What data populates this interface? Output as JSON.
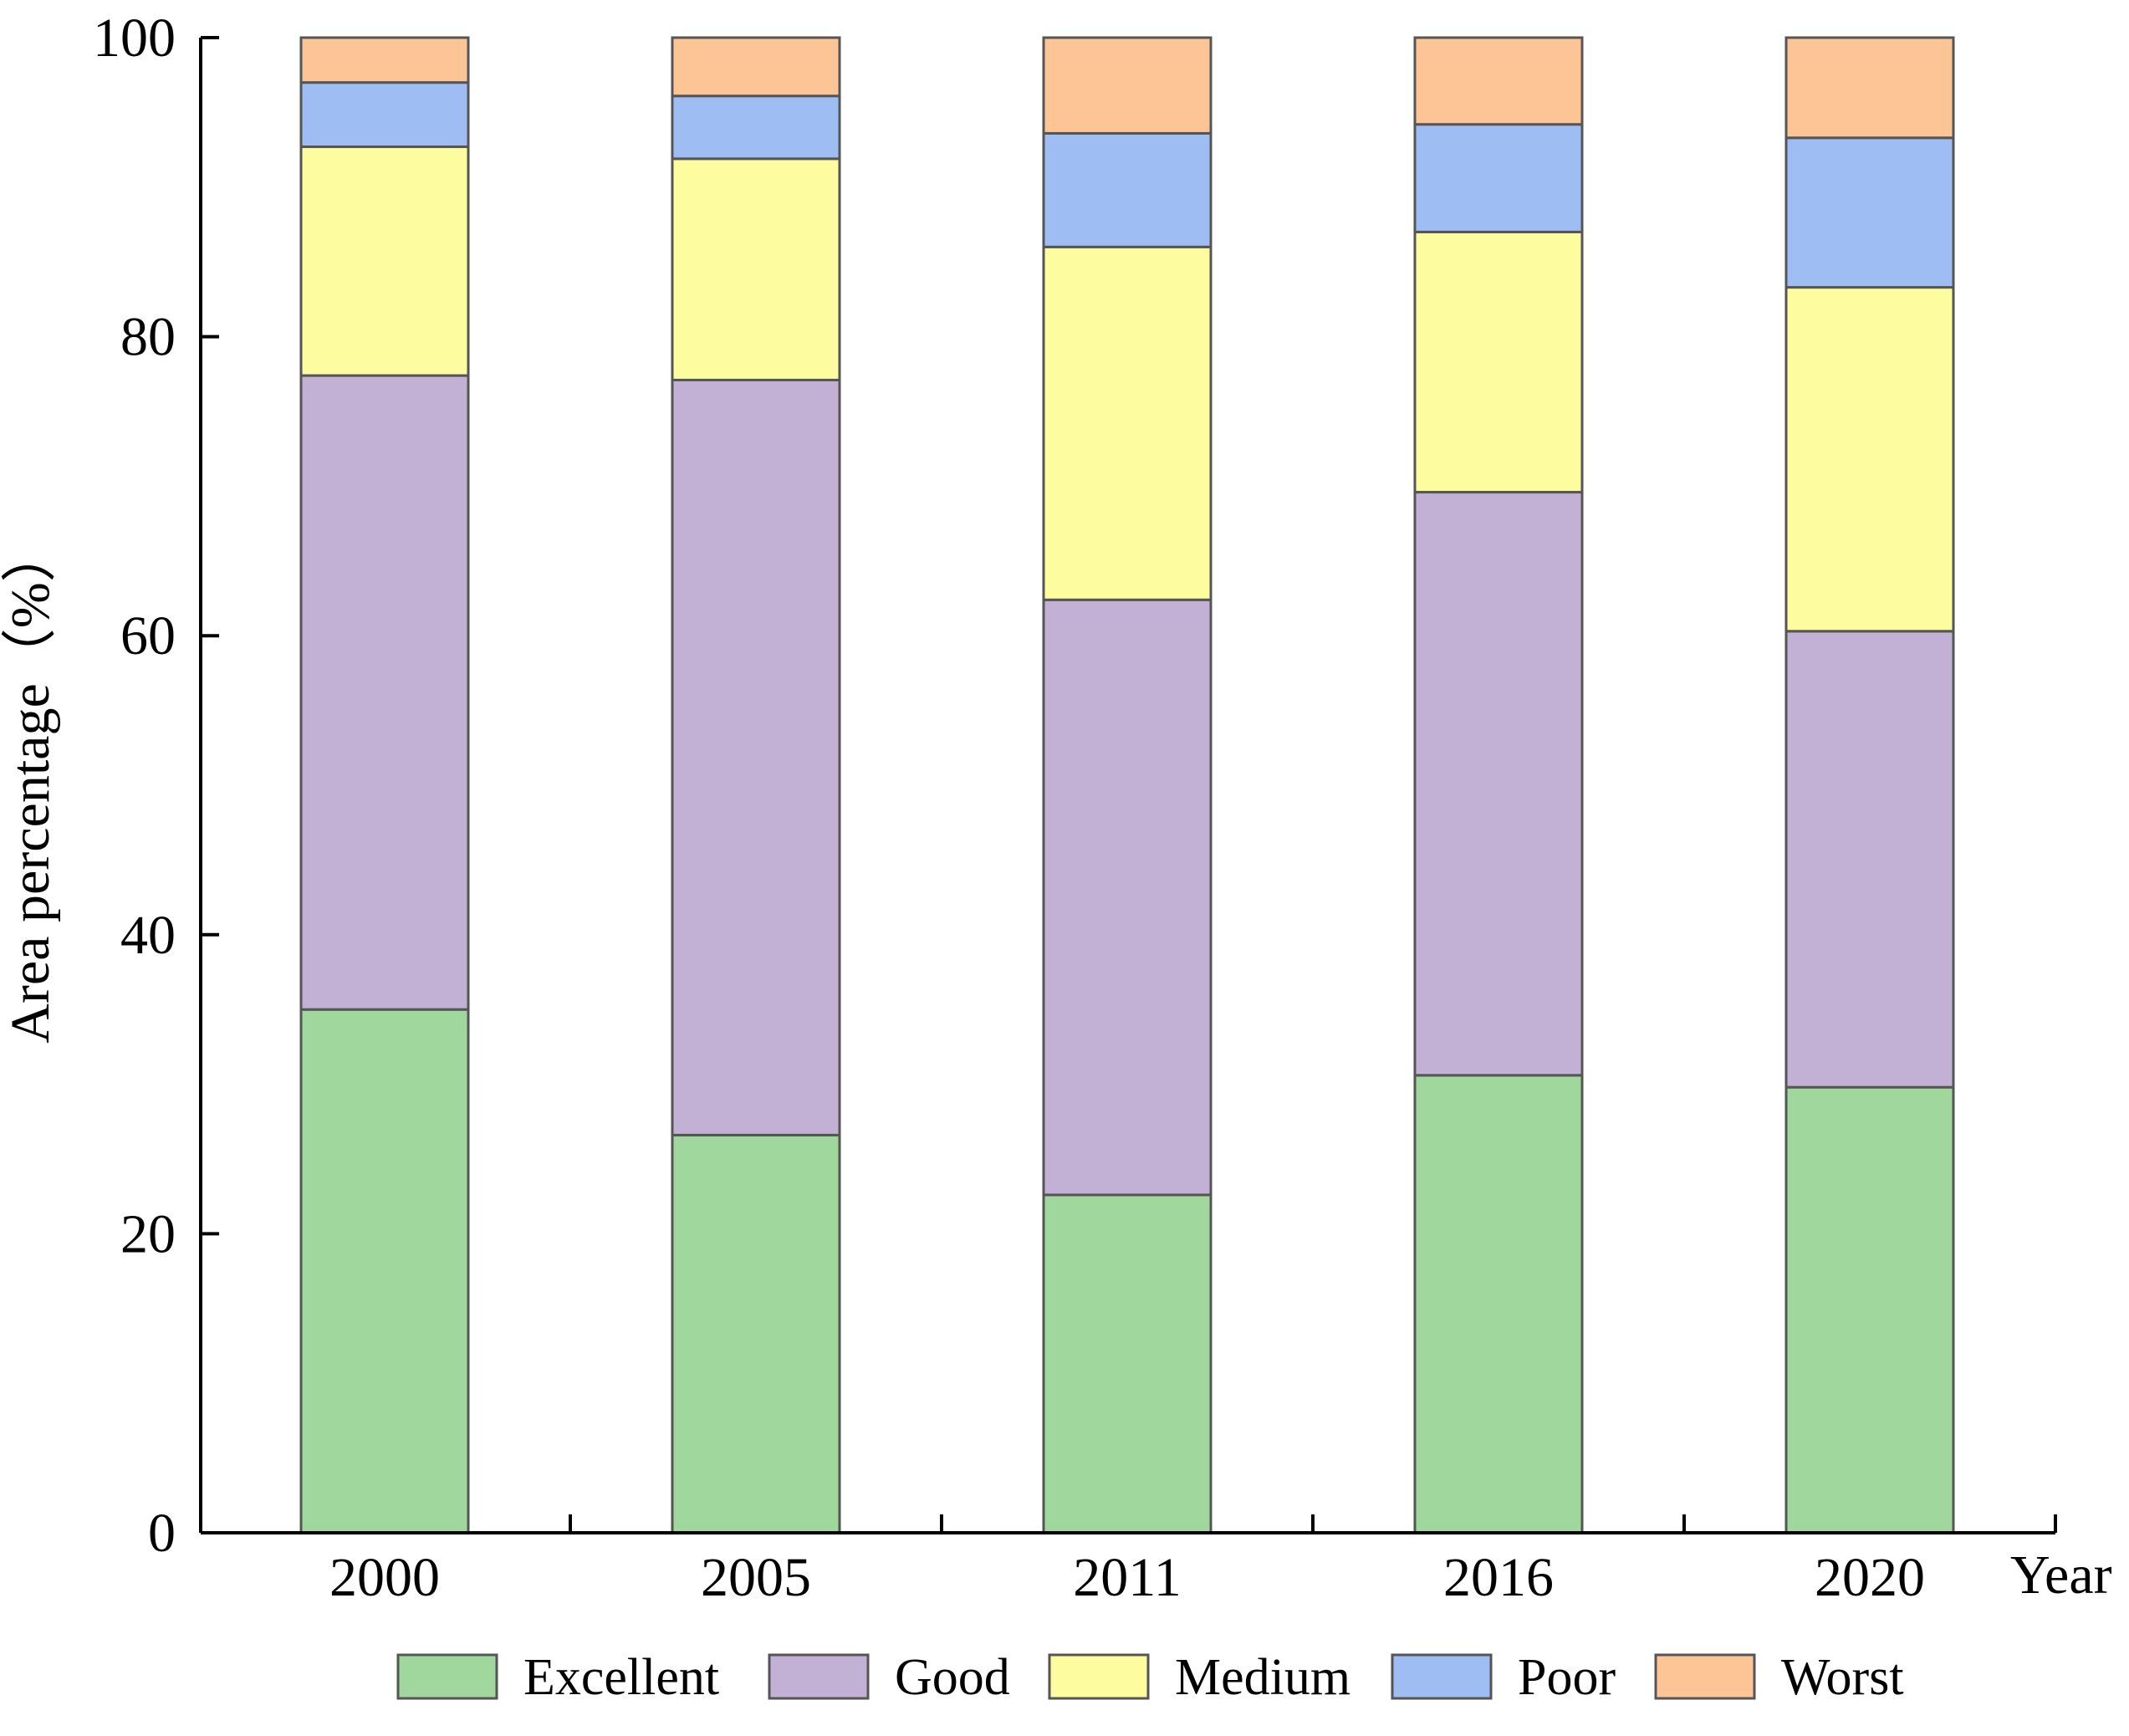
{
  "chart_data": {
    "type": "bar",
    "stacked": true,
    "title": "",
    "xlabel": "Year",
    "ylabel": "Area percentage（%）",
    "ylim": [
      0,
      100
    ],
    "yticks": [
      0,
      20,
      40,
      60,
      80,
      100
    ],
    "categories": [
      "2000",
      "2005",
      "2011",
      "2016",
      "2020"
    ],
    "series": [
      {
        "name": "Excellent",
        "color": "#a0d79d",
        "values": [
          35.0,
          26.6,
          22.6,
          30.6,
          29.8
        ]
      },
      {
        "name": "Good",
        "color": "#c2b0d5",
        "values": [
          42.4,
          50.5,
          39.8,
          39.0,
          30.5
        ]
      },
      {
        "name": "Medium",
        "color": "#fdfd9f",
        "values": [
          15.3,
          14.8,
          23.6,
          17.4,
          23.0
        ]
      },
      {
        "name": "Poor",
        "color": "#9ebdf2",
        "values": [
          4.3,
          4.2,
          7.6,
          7.2,
          10.0
        ]
      },
      {
        "name": "Worst",
        "color": "#fdc596",
        "values": [
          3.0,
          3.9,
          6.4,
          5.8,
          6.7
        ]
      }
    ],
    "legend_position": "bottom",
    "grid": false
  }
}
